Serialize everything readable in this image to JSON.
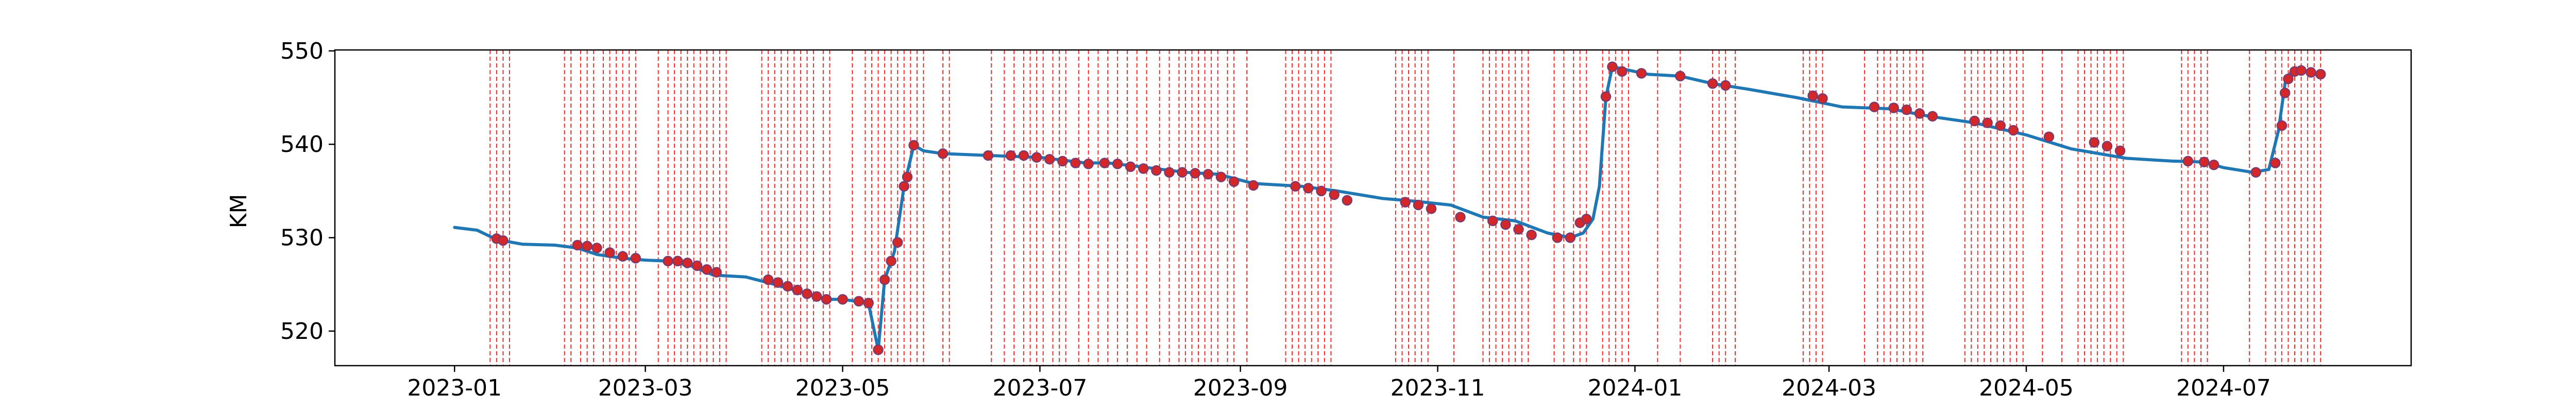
{
  "chart_data": {
    "type": "line",
    "title": "",
    "xlabel": "",
    "ylabel": "KM",
    "xlim": [
      "2022-11-25",
      "2024-08-28"
    ],
    "ylim": [
      516.3,
      550.1
    ],
    "x_ticks": [
      "2023-01",
      "2023-03",
      "2023-05",
      "2023-07",
      "2023-09",
      "2023-11",
      "2024-01",
      "2024-03",
      "2024-05",
      "2024-07"
    ],
    "y_ticks": [
      520,
      530,
      540,
      550
    ],
    "grid": false,
    "legend": "none",
    "colors": {
      "line": "#1f77b4",
      "markers": "#d62728",
      "marker_edge": "#7a3b6e",
      "vlines": "#ff0000"
    },
    "series": [
      {
        "x": [
          "2023-01-01",
          "2023-01-08",
          "2023-01-14",
          "2023-01-22",
          "2023-02-01",
          "2023-02-08",
          "2023-02-14",
          "2023-02-22",
          "2023-03-01",
          "2023-03-08",
          "2023-03-15",
          "2023-03-22",
          "2023-04-01",
          "2023-04-10",
          "2023-04-20",
          "2023-04-26",
          "2023-05-01",
          "2023-05-05",
          "2023-05-09",
          "2023-05-12",
          "2023-05-14",
          "2023-05-17",
          "2023-05-20",
          "2023-05-23",
          "2023-05-26",
          "2023-06-01",
          "2023-06-15",
          "2023-07-01",
          "2023-07-15",
          "2023-07-22",
          "2023-08-01",
          "2023-08-15",
          "2023-08-25",
          "2023-09-05",
          "2023-09-20",
          "2023-10-01",
          "2023-10-15",
          "2023-10-25",
          "2023-11-05",
          "2023-11-15",
          "2023-11-25",
          "2023-12-05",
          "2023-12-12",
          "2023-12-16",
          "2023-12-19",
          "2023-12-21",
          "2023-12-23",
          "2023-12-25",
          "2024-01-05",
          "2024-01-15",
          "2024-01-25",
          "2024-02-05",
          "2024-02-20",
          "2024-03-05",
          "2024-03-20",
          "2024-04-01",
          "2024-04-15",
          "2024-05-01",
          "2024-05-15",
          "2024-06-01",
          "2024-06-15",
          "2024-06-25",
          "2024-07-01",
          "2024-07-10",
          "2024-07-15",
          "2024-07-18",
          "2024-07-20",
          "2024-07-22",
          "2024-07-25",
          "2024-07-30"
        ],
        "y": [
          531.1,
          530.8,
          529.8,
          529.3,
          529.2,
          528.9,
          528.2,
          527.8,
          527.6,
          527.5,
          527.0,
          526.0,
          525.8,
          525.0,
          524.0,
          523.4,
          523.4,
          523.2,
          523.0,
          518.0,
          525.5,
          528.5,
          535.5,
          539.9,
          539.3,
          539.0,
          538.8,
          538.6,
          538.0,
          538.0,
          537.6,
          537.0,
          536.8,
          535.8,
          535.5,
          535.0,
          534.2,
          533.9,
          533.5,
          532.2,
          531.8,
          530.5,
          530.0,
          530.5,
          532.0,
          535.5,
          545.0,
          548.3,
          547.5,
          547.3,
          546.5,
          545.9,
          545.0,
          544.0,
          543.8,
          543.0,
          542.3,
          541.0,
          539.5,
          538.5,
          538.2,
          538.1,
          537.5,
          537.0,
          537.3,
          541.5,
          546.5,
          547.8,
          547.9,
          547.4
        ]
      }
    ],
    "markers": [
      [
        "2023-01-14",
        529.9
      ],
      [
        "2023-01-16",
        529.7
      ],
      [
        "2023-02-08",
        529.2
      ],
      [
        "2023-02-11",
        529.1
      ],
      [
        "2023-02-14",
        528.9
      ],
      [
        "2023-02-18",
        528.4
      ],
      [
        "2023-02-22",
        528.0
      ],
      [
        "2023-02-26",
        527.8
      ],
      [
        "2023-03-08",
        527.5
      ],
      [
        "2023-03-11",
        527.5
      ],
      [
        "2023-03-14",
        527.3
      ],
      [
        "2023-03-17",
        527.0
      ],
      [
        "2023-03-20",
        526.6
      ],
      [
        "2023-03-23",
        526.3
      ],
      [
        "2023-04-08",
        525.5
      ],
      [
        "2023-04-11",
        525.2
      ],
      [
        "2023-04-14",
        524.8
      ],
      [
        "2023-04-17",
        524.4
      ],
      [
        "2023-04-20",
        524.0
      ],
      [
        "2023-04-23",
        523.7
      ],
      [
        "2023-04-26",
        523.4
      ],
      [
        "2023-05-01",
        523.4
      ],
      [
        "2023-05-06",
        523.2
      ],
      [
        "2023-05-09",
        523.0
      ],
      [
        "2023-05-12",
        518.0
      ],
      [
        "2023-05-14",
        525.5
      ],
      [
        "2023-05-16",
        527.5
      ],
      [
        "2023-05-18",
        529.5
      ],
      [
        "2023-05-20",
        535.5
      ],
      [
        "2023-05-21",
        536.5
      ],
      [
        "2023-05-23",
        539.9
      ],
      [
        "2023-06-01",
        539.0
      ],
      [
        "2023-06-15",
        538.8
      ],
      [
        "2023-06-22",
        538.8
      ],
      [
        "2023-06-26",
        538.8
      ],
      [
        "2023-06-30",
        538.6
      ],
      [
        "2023-07-04",
        538.4
      ],
      [
        "2023-07-08",
        538.2
      ],
      [
        "2023-07-12",
        538.0
      ],
      [
        "2023-07-16",
        537.9
      ],
      [
        "2023-07-21",
        538.0
      ],
      [
        "2023-07-25",
        537.9
      ],
      [
        "2023-07-29",
        537.6
      ],
      [
        "2023-08-02",
        537.4
      ],
      [
        "2023-08-06",
        537.2
      ],
      [
        "2023-08-10",
        537.0
      ],
      [
        "2023-08-14",
        537.0
      ],
      [
        "2023-08-18",
        536.9
      ],
      [
        "2023-08-22",
        536.8
      ],
      [
        "2023-08-26",
        536.5
      ],
      [
        "2023-08-30",
        536.0
      ],
      [
        "2023-09-05",
        535.6
      ],
      [
        "2023-09-18",
        535.5
      ],
      [
        "2023-09-22",
        535.3
      ],
      [
        "2023-09-26",
        535.0
      ],
      [
        "2023-09-30",
        534.6
      ],
      [
        "2023-10-04",
        534.0
      ],
      [
        "2023-10-22",
        533.8
      ],
      [
        "2023-10-26",
        533.5
      ],
      [
        "2023-10-30",
        533.1
      ],
      [
        "2023-11-08",
        532.2
      ],
      [
        "2023-11-18",
        531.8
      ],
      [
        "2023-11-22",
        531.4
      ],
      [
        "2023-11-26",
        530.9
      ],
      [
        "2023-11-30",
        530.3
      ],
      [
        "2023-12-08",
        530.0
      ],
      [
        "2023-12-12",
        530.0
      ],
      [
        "2023-12-15",
        531.6
      ],
      [
        "2023-12-17",
        532.0
      ],
      [
        "2023-12-23",
        545.1
      ],
      [
        "2023-12-25",
        548.3
      ],
      [
        "2023-12-28",
        547.8
      ],
      [
        "2024-01-03",
        547.6
      ],
      [
        "2024-01-15",
        547.3
      ],
      [
        "2024-01-25",
        546.5
      ],
      [
        "2024-01-29",
        546.3
      ],
      [
        "2024-02-25",
        545.2
      ],
      [
        "2024-02-28",
        544.9
      ],
      [
        "2024-03-15",
        544.0
      ],
      [
        "2024-03-21",
        543.9
      ],
      [
        "2024-03-25",
        543.7
      ],
      [
        "2024-03-29",
        543.3
      ],
      [
        "2024-04-02",
        543.0
      ],
      [
        "2024-04-15",
        542.5
      ],
      [
        "2024-04-19",
        542.3
      ],
      [
        "2024-04-23",
        542.0
      ],
      [
        "2024-04-27",
        541.5
      ],
      [
        "2024-05-08",
        540.8
      ],
      [
        "2024-05-22",
        540.2
      ],
      [
        "2024-05-26",
        539.8
      ],
      [
        "2024-05-30",
        539.3
      ],
      [
        "2024-06-20",
        538.2
      ],
      [
        "2024-06-25",
        538.1
      ],
      [
        "2024-06-28",
        537.8
      ],
      [
        "2024-07-11",
        537.0
      ],
      [
        "2024-07-17",
        538.0
      ],
      [
        "2024-07-19",
        542.0
      ],
      [
        "2024-07-20",
        545.5
      ],
      [
        "2024-07-21",
        547.0
      ],
      [
        "2024-07-23",
        547.8
      ],
      [
        "2024-07-25",
        547.9
      ],
      [
        "2024-07-28",
        547.7
      ],
      [
        "2024-07-31",
        547.5
      ]
    ],
    "vlines": [
      "2023-01-12",
      "2023-01-14",
      "2023-01-16",
      "2023-01-18",
      "2023-02-04",
      "2023-02-06",
      "2023-02-09",
      "2023-02-11",
      "2023-02-13",
      "2023-02-16",
      "2023-02-18",
      "2023-02-20",
      "2023-02-22",
      "2023-02-24",
      "2023-02-26",
      "2023-03-05",
      "2023-03-08",
      "2023-03-10",
      "2023-03-12",
      "2023-03-14",
      "2023-03-16",
      "2023-03-18",
      "2023-03-20",
      "2023-03-22",
      "2023-03-24",
      "2023-03-26",
      "2023-04-06",
      "2023-04-08",
      "2023-04-10",
      "2023-04-12",
      "2023-04-14",
      "2023-04-16",
      "2023-04-18",
      "2023-04-20",
      "2023-04-22",
      "2023-04-25",
      "2023-04-27",
      "2023-05-04",
      "2023-05-08",
      "2023-05-10",
      "2023-05-12",
      "2023-05-14",
      "2023-05-16",
      "2023-05-18",
      "2023-05-20",
      "2023-05-22",
      "2023-05-24",
      "2023-05-26",
      "2023-06-01",
      "2023-06-03",
      "2023-06-16",
      "2023-06-20",
      "2023-06-23",
      "2023-06-26",
      "2023-06-28",
      "2023-06-30",
      "2023-07-02",
      "2023-07-05",
      "2023-07-07",
      "2023-07-09",
      "2023-07-13",
      "2023-07-16",
      "2023-07-19",
      "2023-07-22",
      "2023-07-25",
      "2023-07-28",
      "2023-07-31",
      "2023-08-03",
      "2023-08-07",
      "2023-08-10",
      "2023-08-13",
      "2023-08-15",
      "2023-08-17",
      "2023-08-19",
      "2023-08-21",
      "2023-08-23",
      "2023-08-25",
      "2023-08-28",
      "2023-08-30",
      "2023-09-03",
      "2023-09-15",
      "2023-09-17",
      "2023-09-19",
      "2023-09-21",
      "2023-09-23",
      "2023-09-25",
      "2023-09-27",
      "2023-09-29",
      "2023-10-19",
      "2023-10-21",
      "2023-10-23",
      "2023-10-25",
      "2023-10-27",
      "2023-10-29",
      "2023-11-06",
      "2023-11-15",
      "2023-11-17",
      "2023-11-19",
      "2023-11-21",
      "2023-11-23",
      "2023-11-25",
      "2023-11-27",
      "2023-11-29",
      "2023-12-07",
      "2023-12-10",
      "2023-12-13",
      "2023-12-15",
      "2023-12-17",
      "2023-12-22",
      "2023-12-24",
      "2023-12-26",
      "2023-12-28",
      "2023-12-30",
      "2024-01-08",
      "2024-01-15",
      "2024-01-25",
      "2024-01-27",
      "2024-01-29",
      "2024-02-01",
      "2024-02-22",
      "2024-02-24",
      "2024-02-26",
      "2024-02-28",
      "2024-03-12",
      "2024-03-16",
      "2024-03-18",
      "2024-03-20",
      "2024-03-22",
      "2024-03-24",
      "2024-03-26",
      "2024-03-28",
      "2024-03-30",
      "2024-04-12",
      "2024-04-14",
      "2024-04-16",
      "2024-04-18",
      "2024-04-20",
      "2024-04-22",
      "2024-04-24",
      "2024-04-26",
      "2024-04-28",
      "2024-04-30",
      "2024-05-06",
      "2024-05-12",
      "2024-05-17",
      "2024-05-19",
      "2024-05-21",
      "2024-05-23",
      "2024-05-25",
      "2024-05-27",
      "2024-05-29",
      "2024-05-31",
      "2024-06-18",
      "2024-06-20",
      "2024-06-22",
      "2024-06-24",
      "2024-06-26",
      "2024-07-09",
      "2024-07-14",
      "2024-07-17",
      "2024-07-19",
      "2024-07-21",
      "2024-07-23",
      "2024-07-25",
      "2024-07-27",
      "2024-07-29",
      "2024-07-31"
    ]
  }
}
